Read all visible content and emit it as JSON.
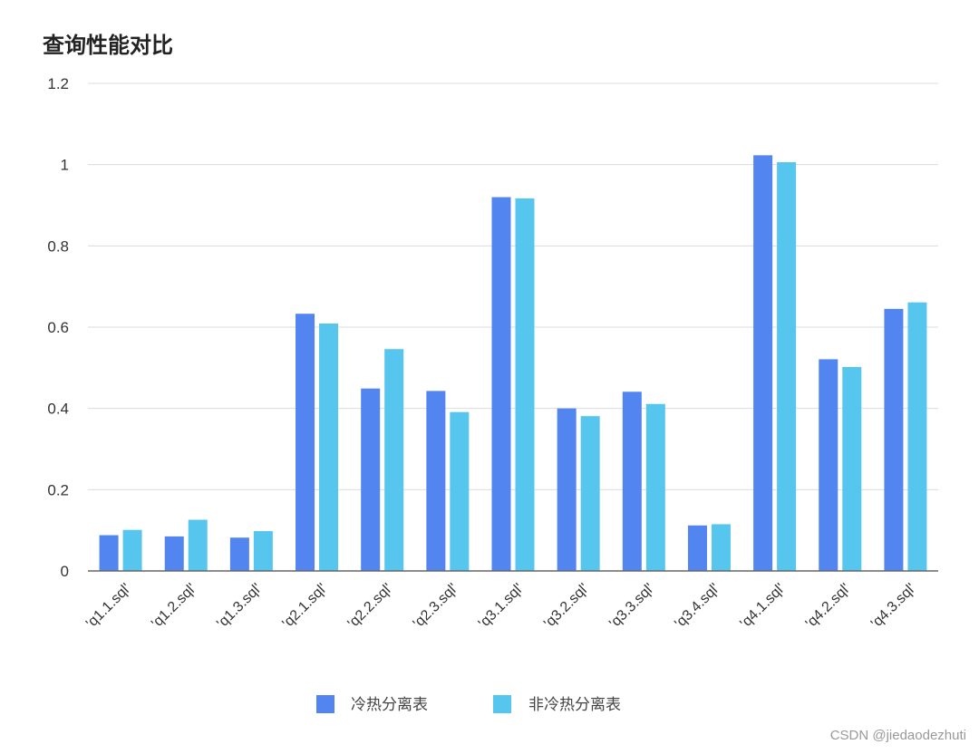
{
  "watermark": "CSDN @jiedaodezhuti",
  "chart_data": {
    "type": "bar",
    "title": "查询性能对比",
    "xlabel": "",
    "ylabel": "",
    "ylim": [
      0,
      1.2
    ],
    "yticks": [
      "0",
      "0.2",
      "0.4",
      "0.6",
      "0.8",
      "1",
      "1.2"
    ],
    "grid": true,
    "legend_position": "bottom-center",
    "categories": [
      "'q1.1.sql'",
      "'q1.2.sql'",
      "'q1.3.sql'",
      "'q2.1.sql'",
      "'q2.2.sql'",
      "'q2.3.sql'",
      "'q3.1.sql'",
      "'q3.2.sql'",
      "'q3.3.sql'",
      "'q3.4.sql'",
      "'q4.1.sql'",
      "'q4.2.sql'",
      "'q4.3.sql'"
    ],
    "series": [
      {
        "name": "冷热分离表",
        "color": "#5285f0",
        "values": [
          0.088,
          0.085,
          0.082,
          0.633,
          0.449,
          0.443,
          0.92,
          0.4,
          0.441,
          0.112,
          1.023,
          0.521,
          0.645
        ]
      },
      {
        "name": "非冷热分离表",
        "color": "#56c6ef",
        "values": [
          0.101,
          0.126,
          0.098,
          0.609,
          0.546,
          0.391,
          0.917,
          0.381,
          0.411,
          0.115,
          1.006,
          0.502,
          0.661
        ]
      }
    ]
  }
}
